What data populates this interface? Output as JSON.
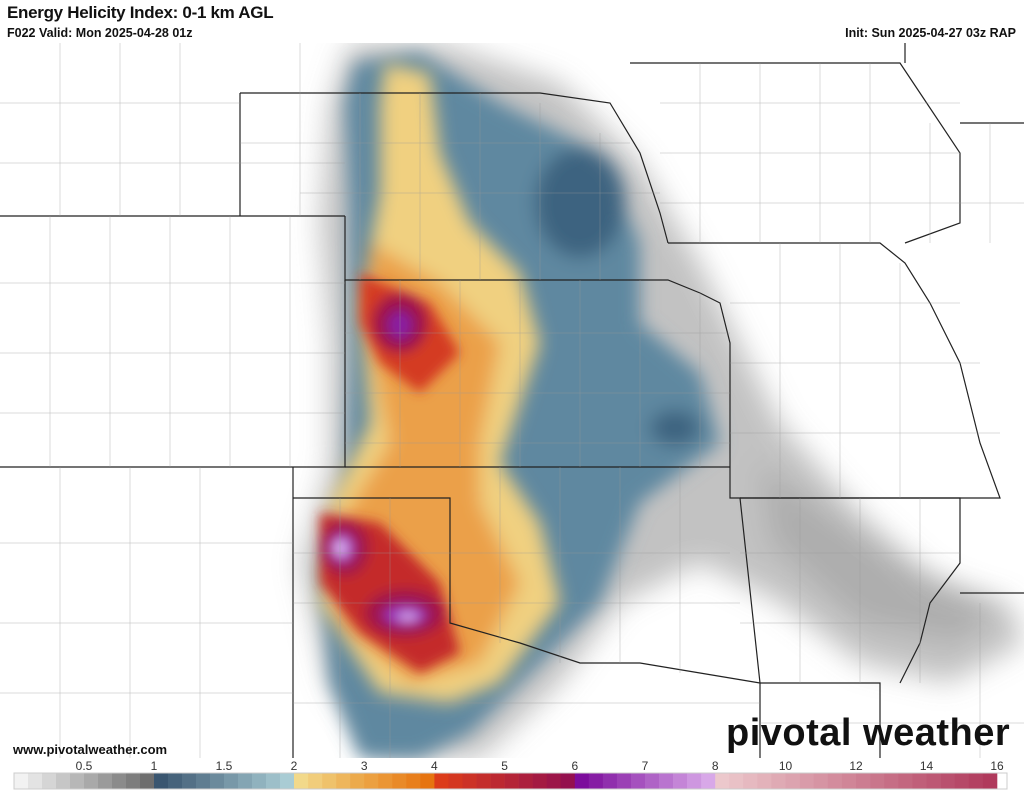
{
  "header": {
    "title": "Energy Helicity Index: 0-1 km AGL",
    "valid": "F022 Valid: Mon 2025-04-28 01z",
    "init": "Init: Sun 2025-04-27 03z RAP"
  },
  "footer": {
    "url": "www.pivotalweather.com",
    "logo": "pivotal weather"
  },
  "colorbar": {
    "ticks": [
      "0.5",
      "1",
      "1.5",
      "2",
      "3",
      "4",
      "5",
      "6",
      "7",
      "8",
      "10",
      "12",
      "14",
      "16"
    ],
    "tick_values": [
      0.5,
      1,
      1.5,
      2,
      3,
      4,
      5,
      6,
      7,
      8,
      10,
      12,
      14,
      16
    ],
    "ranges": [
      {
        "from": 0,
        "to": 1,
        "cells": 10,
        "c0": "#f2f2f2",
        "c1": "#6e6e6e"
      },
      {
        "from": 1,
        "to": 2,
        "cells": 10,
        "c0": "#3a5670",
        "c1": "#a9ccd4"
      },
      {
        "from": 2,
        "to": 3,
        "cells": 5,
        "c0": "#f2d98a",
        "c1": "#ecaa4c"
      },
      {
        "from": 3,
        "to": 4,
        "cells": 5,
        "c0": "#eca040",
        "c1": "#e67410"
      },
      {
        "from": 4,
        "to": 6,
        "cells": 10,
        "c0": "#dc3c1a",
        "c1": "#94104e"
      },
      {
        "from": 6,
        "to": 8,
        "cells": 10,
        "c0": "#7c0c9c",
        "c1": "#d8a8e8"
      },
      {
        "from": 8,
        "to": 16,
        "cells": 20,
        "c0": "#ecc8cc",
        "c1": "#b03a5c"
      }
    ]
  },
  "colors": {
    "gray": "#8a8a8a",
    "blue": "#4e7892",
    "yellow": "#f0d07a",
    "orange": "#e88a2a",
    "red": "#c82838",
    "purple": "#8a1aa0",
    "lilac": "#c890e0"
  }
}
